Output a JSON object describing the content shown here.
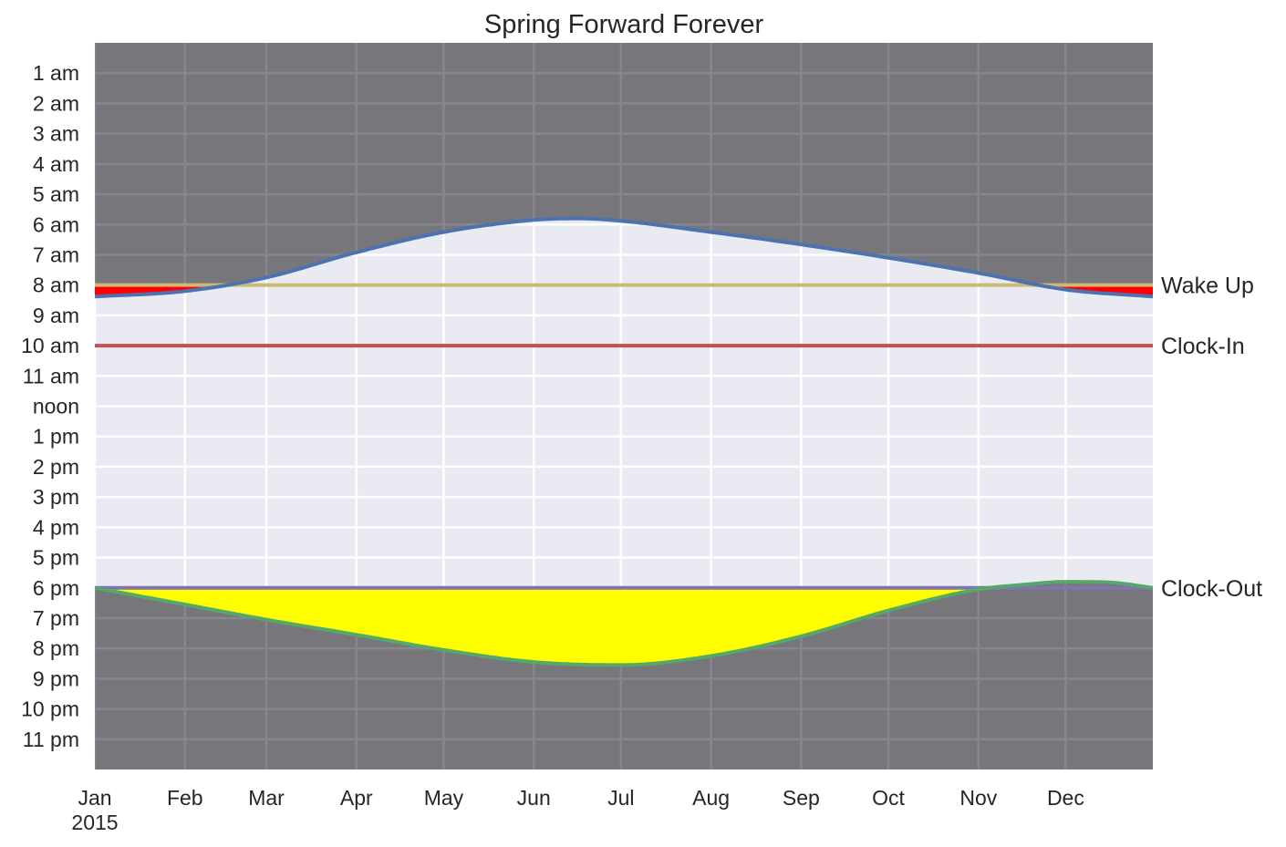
{
  "chart_data": {
    "type": "line",
    "title": "Spring Forward Forever",
    "xlabel": "",
    "ylabel": "",
    "x_tick_labels": [
      "Jan",
      "Feb",
      "Mar",
      "Apr",
      "May",
      "Jun",
      "Jul",
      "Aug",
      "Sep",
      "Oct",
      "Nov",
      "Dec"
    ],
    "x_year_label": "2015",
    "x_tick_days": [
      0,
      31,
      59,
      90,
      120,
      151,
      181,
      212,
      243,
      273,
      304,
      334
    ],
    "xlim_days": [
      0,
      364
    ],
    "y_tick_labels": [
      "1 am",
      "2 am",
      "3 am",
      "4 am",
      "5 am",
      "6 am",
      "7 am",
      "8 am",
      "9 am",
      "10 am",
      "11 am",
      "noon",
      "1 pm",
      "2 pm",
      "3 pm",
      "4 pm",
      "5 pm",
      "6 pm",
      "7 pm",
      "8 pm",
      "9 pm",
      "10 pm",
      "11 pm"
    ],
    "y_tick_hours": [
      1,
      2,
      3,
      4,
      5,
      6,
      7,
      8,
      9,
      10,
      11,
      12,
      13,
      14,
      15,
      16,
      17,
      18,
      19,
      20,
      21,
      22,
      23
    ],
    "ylim_hours": [
      0,
      24
    ],
    "y_inverted": true,
    "grid": true,
    "colors": {
      "plot_background": "#eaeaf2",
      "night": "#77767b",
      "night_grid": "#878690",
      "sunrise": "#4c72b0",
      "sunset": "#55a868",
      "wake_up": "#ccb974",
      "clock_in": "#c44e52",
      "clock_out": "#8172b2",
      "dark_wake_fill": "#ff0000",
      "evening_light_fill": "#ffff00"
    },
    "series": [
      {
        "key": "sunrise",
        "days": [
          0,
          31,
          59,
          90,
          120,
          151,
          166,
          181,
          212,
          243,
          273,
          304,
          334,
          364
        ],
        "hours": [
          8.38,
          8.2,
          7.75,
          6.92,
          6.25,
          5.85,
          5.8,
          5.88,
          6.25,
          6.66,
          7.1,
          7.6,
          8.15,
          8.38
        ]
      },
      {
        "key": "sunset",
        "days": [
          0,
          31,
          59,
          90,
          120,
          151,
          181,
          212,
          243,
          273,
          304,
          319,
          334,
          349,
          364
        ],
        "hours": [
          18.0,
          18.55,
          19.05,
          19.55,
          20.05,
          20.45,
          20.55,
          20.25,
          19.6,
          18.75,
          18.05,
          17.9,
          17.8,
          17.82,
          18.0
        ]
      }
    ],
    "reference_lines": [
      {
        "key": "wake_up",
        "label": "Wake Up",
        "hour": 8.0
      },
      {
        "key": "clock_in",
        "label": "Clock-In",
        "hour": 10.0
      },
      {
        "key": "clock_out",
        "label": "Clock-Out",
        "hour": 18.0
      }
    ]
  }
}
